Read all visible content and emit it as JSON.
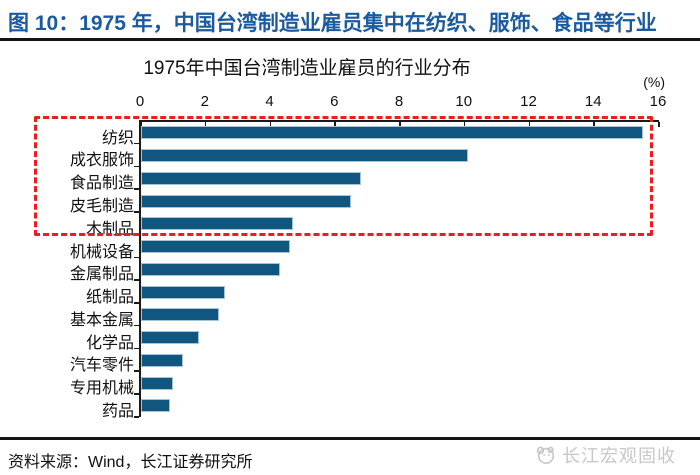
{
  "figure": {
    "title": "图 10：1975 年，中国台湾制造业雇员集中在纺织、服饰、食品等行业"
  },
  "chart_data": {
    "type": "bar",
    "orientation": "horizontal",
    "title": "1975年中国台湾制造业雇员的行业分布",
    "unit_label": "(%)",
    "categories": [
      "纺织",
      "成衣服饰",
      "食品制造",
      "皮毛制造",
      "木制品",
      "机械设备",
      "金属制品",
      "纸制品",
      "基本金属",
      "化学品",
      "汽车零件",
      "专用机械",
      "药品"
    ],
    "values": [
      15.5,
      10.1,
      6.8,
      6.5,
      4.7,
      4.6,
      4.3,
      2.6,
      2.4,
      1.8,
      1.3,
      1.0,
      0.9
    ],
    "xlim": [
      0,
      16
    ],
    "xticks": [
      0,
      2,
      4,
      6,
      8,
      10,
      12,
      14,
      16
    ],
    "grid": false,
    "legend": false,
    "bar_color": "#11567e",
    "highlight_box_color": "#ee1c1c",
    "highlighted_categories": [
      "纺织",
      "成衣服饰",
      "食品制造",
      "皮毛制造",
      "木制品"
    ]
  },
  "footer": {
    "source_text": "资料来源：Wind，长江证券研究所",
    "watermark_text": "长江宏观固收"
  }
}
